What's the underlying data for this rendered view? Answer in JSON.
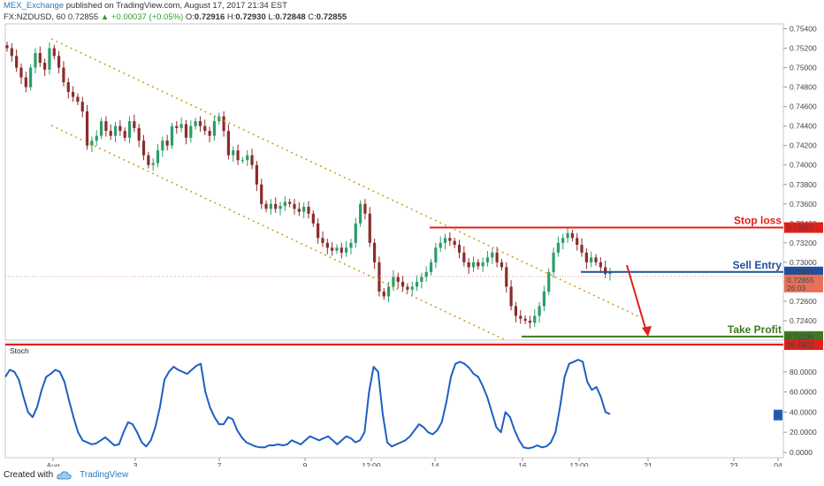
{
  "header": {
    "publisher": "MEX_Exchange",
    "published_text": "published on TradingView.com, August 17, 2017 21:34 EST",
    "symbol_line": "FX:NZDUSD, 60",
    "price": "0.72855",
    "change": "+0.00037 (+0.05%)",
    "o_label": "O:",
    "o_value": "0.72916",
    "h_label": "H:",
    "h_value": "0.72930",
    "l_label": "L:",
    "l_value": "0.72848",
    "c_label": "C:",
    "c_value": "0.72855"
  },
  "footer": {
    "created_with": "Created with",
    "brand": "TradingView"
  },
  "colors": {
    "candle_up": "#2a9d6a",
    "candle_down": "#8b2b2b",
    "channel": "#c9a227",
    "stop": "#e0201b",
    "entry": "#1f4fa0",
    "profit": "#3d7a1e",
    "stoch": "#1f5fc2"
  },
  "chart_data": [
    {
      "type": "candlestick",
      "symbol": "FX:NZDUSD",
      "timeframe": "60",
      "ylim": [
        0.722,
        0.7545
      ],
      "y_ticks": [
        "0.75400",
        "0.75200",
        "0.75000",
        "0.74800",
        "0.74600",
        "0.74400",
        "0.74200",
        "0.74000",
        "0.73800",
        "0.73600",
        "0.73400",
        "0.73200",
        "0.73000",
        "0.72800",
        "0.72600",
        "0.72400"
      ],
      "x_ticks": [
        "Aug",
        "3",
        "7",
        "9",
        "12:00",
        "14",
        "16",
        "12:00",
        "21",
        "23",
        "04"
      ],
      "price_path": [
        0.752,
        0.7512,
        0.75,
        0.749,
        0.748,
        0.75,
        0.7515,
        0.7505,
        0.7498,
        0.752,
        0.7512,
        0.75,
        0.7485,
        0.7475,
        0.747,
        0.7465,
        0.7455,
        0.742,
        0.7425,
        0.743,
        0.7445,
        0.7435,
        0.743,
        0.744,
        0.7435,
        0.7428,
        0.7445,
        0.7438,
        0.7425,
        0.741,
        0.74,
        0.7402,
        0.7415,
        0.7425,
        0.742,
        0.744,
        0.7438,
        0.7442,
        0.7428,
        0.744,
        0.7445,
        0.744,
        0.7435,
        0.743,
        0.7445,
        0.745,
        0.7435,
        0.741,
        0.7415,
        0.7405,
        0.7405,
        0.741,
        0.74,
        0.738,
        0.736,
        0.7355,
        0.736,
        0.7355,
        0.7358,
        0.7362,
        0.736,
        0.7355,
        0.7352,
        0.7357,
        0.735,
        0.734,
        0.7325,
        0.732,
        0.7315,
        0.7312,
        0.7315,
        0.731,
        0.7315,
        0.732,
        0.734,
        0.736,
        0.735,
        0.732,
        0.73,
        0.727,
        0.7265,
        0.7275,
        0.7285,
        0.728,
        0.7275,
        0.7272,
        0.7275,
        0.728,
        0.7285,
        0.729,
        0.73,
        0.7315,
        0.732,
        0.7325,
        0.7322,
        0.7318,
        0.731,
        0.73,
        0.7295,
        0.73,
        0.7296,
        0.73,
        0.7305,
        0.731,
        0.73,
        0.7295,
        0.7275,
        0.7255,
        0.7245,
        0.7242,
        0.724,
        0.7238,
        0.7245,
        0.7255,
        0.727,
        0.729,
        0.731,
        0.732,
        0.7325,
        0.733,
        0.7325,
        0.7318,
        0.731,
        0.73,
        0.7305,
        0.73,
        0.7295,
        0.7288,
        0.729
      ],
      "channel_upper": [
        {
          "x": "Aug",
          "y": 0.7525
        },
        {
          "x": "16",
          "y": 0.7298
        }
      ],
      "channel_lower": [
        {
          "x": "Aug",
          "y": 0.7442
        },
        {
          "x": "16",
          "y": 0.7217
        }
      ],
      "levels": [
        {
          "label": "Stop loss",
          "price_label": "0.73357",
          "value": 0.73357
        },
        {
          "label": "Sell Entry",
          "price_label": "0.72901",
          "value": 0.72901
        },
        {
          "label": "Take Profit",
          "price_label": "0.72238",
          "value": 0.72238
        }
      ],
      "last_price_label": "0.72855",
      "countdown_label": "26:03"
    },
    {
      "type": "line",
      "name": "Stoch",
      "ylim": [
        0,
        100
      ],
      "y_ticks": [
        "80.0000",
        "60.0000",
        "40.0000",
        "20.0000",
        "0.0000"
      ],
      "marker_label": "96.7822",
      "marker_value": 96.7822,
      "current_tag": "D",
      "values": [
        75,
        82,
        80,
        72,
        55,
        40,
        35,
        45,
        62,
        75,
        78,
        82,
        80,
        70,
        52,
        35,
        20,
        12,
        10,
        8,
        9,
        12,
        15,
        11,
        7,
        8,
        20,
        30,
        28,
        20,
        10,
        6,
        12,
        25,
        45,
        72,
        80,
        85,
        82,
        80,
        78,
        82,
        86,
        88,
        60,
        45,
        35,
        28,
        28,
        35,
        33,
        22,
        15,
        10,
        8,
        6,
        5,
        5,
        7,
        7,
        8,
        7,
        8,
        12,
        10,
        8,
        12,
        16,
        14,
        12,
        14,
        16,
        12,
        8,
        12,
        16,
        14,
        10,
        12,
        20,
        60,
        85,
        80,
        38,
        10,
        6,
        8,
        10,
        12,
        16,
        22,
        28,
        25,
        20,
        18,
        22,
        30,
        50,
        75,
        88,
        90,
        88,
        84,
        78,
        75,
        66,
        55,
        40,
        25,
        20,
        40,
        35,
        22,
        12,
        5,
        4,
        5,
        7,
        5,
        6,
        10,
        20,
        45,
        75,
        88,
        90,
        92,
        90,
        70,
        62,
        65,
        55,
        40,
        38
      ]
    }
  ]
}
